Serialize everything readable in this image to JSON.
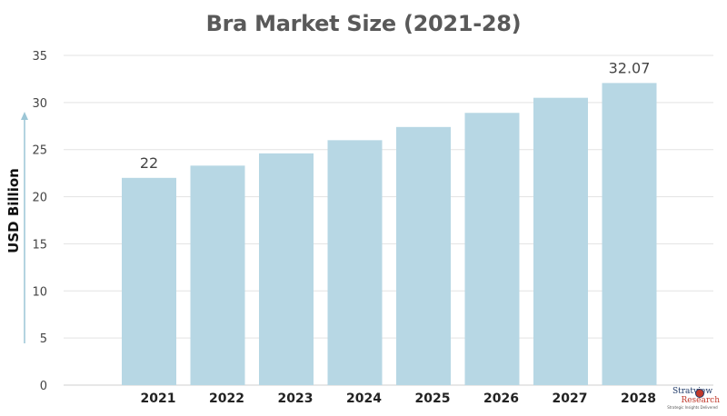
{
  "chart_data": {
    "type": "bar",
    "title": "Bra Market Size (2021-28)",
    "xlabel": "",
    "ylabel": "USD Billion",
    "categories": [
      "2021",
      "2022",
      "2023",
      "2024",
      "2025",
      "2026",
      "2027",
      "2028"
    ],
    "values": [
      22,
      23.3,
      24.6,
      26.0,
      27.4,
      28.9,
      30.5,
      32.07
    ],
    "data_labels": [
      {
        "category": "2021",
        "text": "22"
      },
      {
        "category": "2028",
        "text": "32.07"
      }
    ],
    "ylim": [
      0,
      35
    ],
    "yticks": [
      0,
      5,
      10,
      15,
      20,
      25,
      30,
      35
    ],
    "ytick_labels": [
      "0",
      "5",
      "10",
      "15",
      "20",
      "25",
      "30",
      "35"
    ],
    "grid": true,
    "legend": "none",
    "colors": {
      "bar": "#b7d7e4",
      "grid": "#e3e3e3",
      "title": "#595959",
      "arrow": "#9cc6d6"
    }
  },
  "branding": {
    "top": "Stratview",
    "bottom": "Research",
    "tagline": "Strategic Insights Delivered"
  }
}
